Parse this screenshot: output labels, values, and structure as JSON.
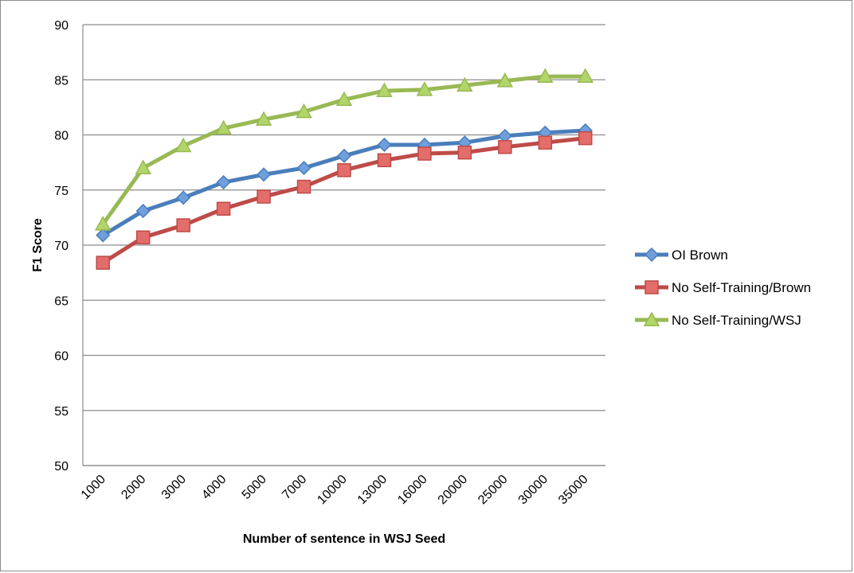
{
  "chart_data": {
    "type": "line",
    "title": "",
    "xlabel": "Number of sentence in WSJ Seed",
    "ylabel": "F1 Score",
    "categories": [
      "1000",
      "2000",
      "3000",
      "4000",
      "5000",
      "7000",
      "10000",
      "13000",
      "16000",
      "20000",
      "25000",
      "30000",
      "35000"
    ],
    "ylim": [
      50,
      90
    ],
    "yticks": [
      50,
      55,
      60,
      65,
      70,
      75,
      80,
      85,
      90
    ],
    "grid": "horizontal",
    "legend_position": "right",
    "series": [
      {
        "name": "OI Brown",
        "color": "#4a7ebb",
        "marker": "diamond",
        "marker_fill": "#6f9fdc",
        "values": [
          70.9,
          73.1,
          74.3,
          75.7,
          76.4,
          77.0,
          78.1,
          79.1,
          79.1,
          79.3,
          79.9,
          80.2,
          80.4
        ]
      },
      {
        "name": "No Self-Training/Brown",
        "color": "#be4b48",
        "marker": "square",
        "marker_fill": "#e36d6a",
        "values": [
          68.4,
          70.7,
          71.8,
          73.3,
          74.4,
          75.3,
          76.8,
          77.7,
          78.3,
          78.4,
          78.9,
          79.3,
          79.7
        ]
      },
      {
        "name": "No Self-Training/WSJ",
        "color": "#98b954",
        "marker": "triangle",
        "marker_fill": "#b2d56a",
        "values": [
          71.9,
          77.0,
          79.0,
          80.6,
          81.4,
          82.1,
          83.2,
          84.0,
          84.1,
          84.5,
          84.9,
          85.3,
          85.3
        ]
      }
    ]
  }
}
